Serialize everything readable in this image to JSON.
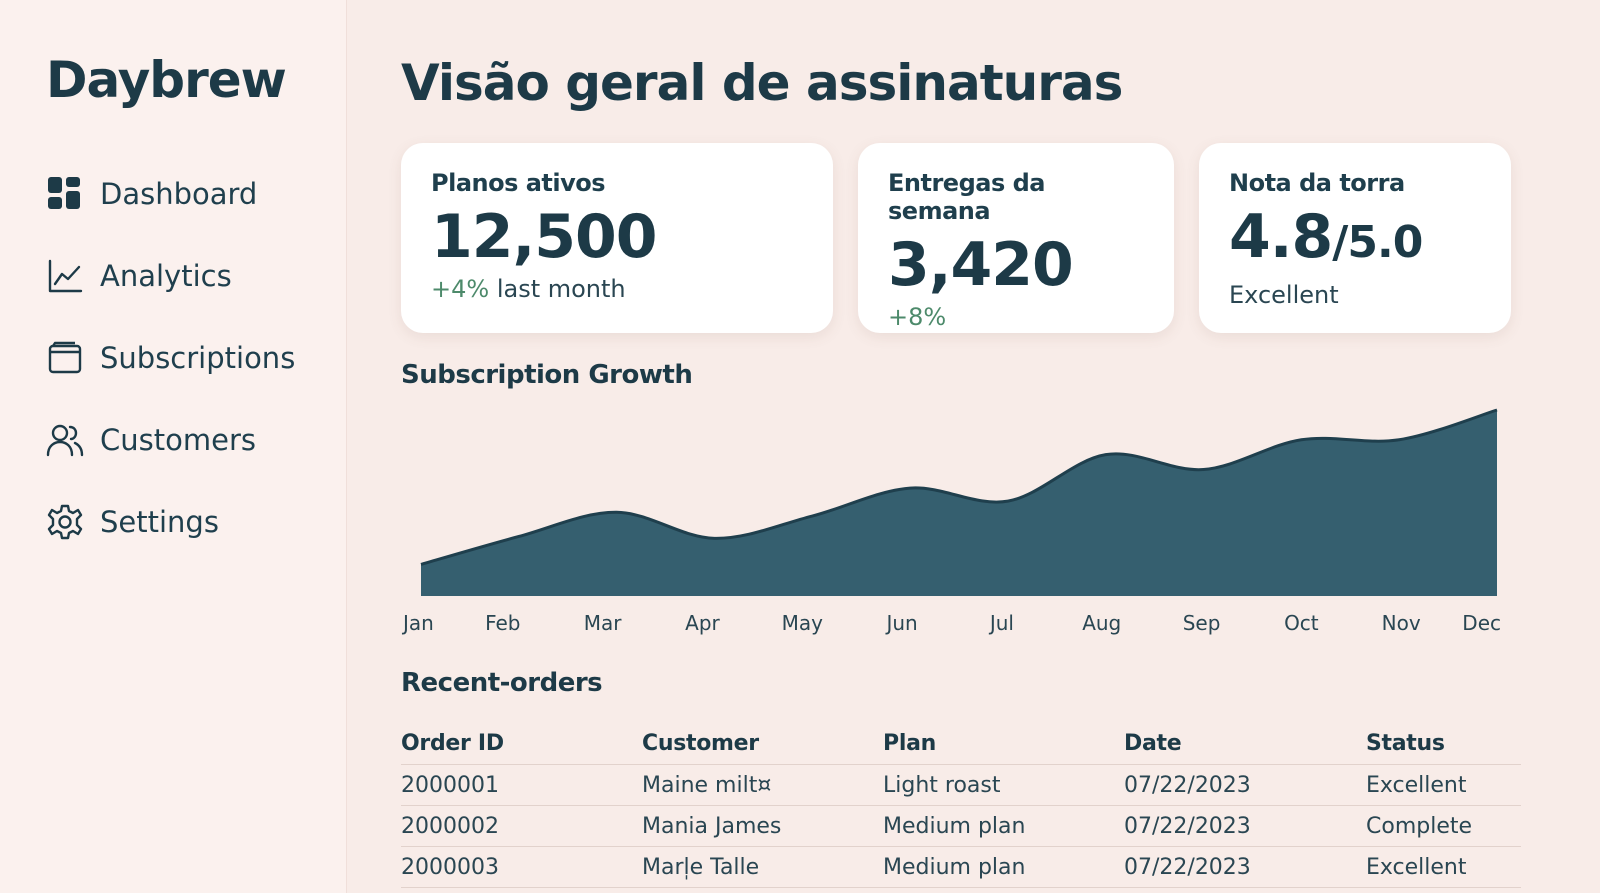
{
  "brand": "Daybrew",
  "sidebar": {
    "items": [
      {
        "label": "Dashboard",
        "icon": "dashboard-grid-icon"
      },
      {
        "label": "Analytics",
        "icon": "line-chart-icon"
      },
      {
        "label": "Subscriptions",
        "icon": "wallet-icon"
      },
      {
        "label": "Customers",
        "icon": "users-icon"
      },
      {
        "label": "Settings",
        "icon": "gear-icon"
      }
    ]
  },
  "page": {
    "title": "Visão geral de assinaturas"
  },
  "cards": [
    {
      "label": "Planos ativos",
      "value": "12,500",
      "delta": "+4%",
      "sub": " last month"
    },
    {
      "label": "Entregas da semana",
      "value": "3,420",
      "delta": "+8%",
      "sub": ""
    },
    {
      "label": "Nota da torra",
      "value": "4.8",
      "value_suffix": "/5.0",
      "delta": "",
      "sub": "Excellent"
    }
  ],
  "chart_section_title": "Subscription Growth",
  "chart_data": {
    "type": "area",
    "title": "Subscription Growth",
    "categories": [
      "Jan",
      "Feb",
      "Mar",
      "Apr",
      "May",
      "Jun",
      "Jul",
      "Aug",
      "Sep",
      "Oct",
      "Nov",
      "Dec"
    ],
    "values": [
      17,
      32,
      45,
      31,
      43,
      58,
      51,
      76,
      68,
      84,
      84,
      100
    ],
    "ylim": [
      0,
      100
    ],
    "grid": false,
    "legend": "none",
    "fill_color": "#355f6f",
    "stroke_color": "#1f3f4d"
  },
  "orders": {
    "title": "Recent-orders",
    "columns": [
      "Order ID",
      "Customer",
      "Plan",
      "Date",
      "Status"
    ],
    "rows": [
      [
        "2000001",
        "Maine milt¤",
        "Light roast",
        "07/22/2023",
        "Excellent"
      ],
      [
        "2000002",
        "Mania James",
        "Medium plan",
        "07/22/2023",
        "Complete"
      ],
      [
        "2000003",
        "Marl̩e Talle",
        "Medium plan",
        "07/22/2023",
        "Excellent"
      ]
    ]
  },
  "colors": {
    "background": "#f8ece8",
    "sidebar": "#fbf1ee",
    "primary": "#1d3a47",
    "accent_area": "#355f6f",
    "positive": "#4d8a6b"
  }
}
